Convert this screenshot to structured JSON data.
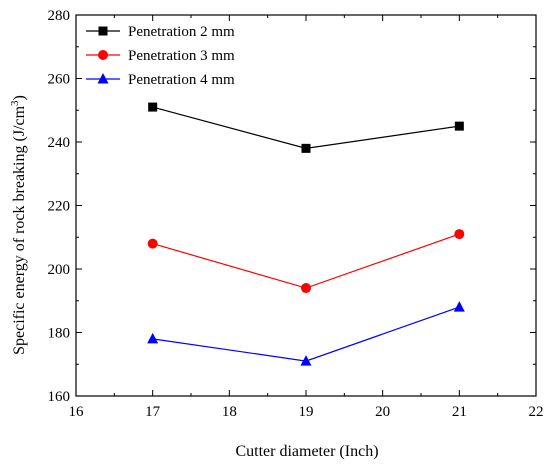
{
  "chart_data": {
    "type": "line",
    "title": "",
    "xlabel": "Cutter diameter (Inch)",
    "ylabel": "Specific energy of rock breaking (J/cm",
    "ylabel_sup": "3",
    "ylabel_close": ")",
    "xlim": [
      16,
      22
    ],
    "ylim": [
      160,
      280
    ],
    "xticks": [
      "16",
      "17",
      "18",
      "19",
      "20",
      "21",
      "22"
    ],
    "yticks": [
      "160",
      "180",
      "200",
      "220",
      "240",
      "260",
      "280"
    ],
    "x": [
      17,
      19,
      21
    ],
    "legend_position": "top-left",
    "grid": false,
    "series": [
      {
        "name": "Penetration 2 mm",
        "values": [
          251,
          238,
          245
        ],
        "color": "#000000",
        "marker": "square"
      },
      {
        "name": "Penetration 3 mm",
        "values": [
          208,
          194,
          211
        ],
        "color": "#ff0000",
        "marker": "circle"
      },
      {
        "name": "Penetration 4 mm",
        "values": [
          178,
          171,
          188
        ],
        "color": "#0000ff",
        "marker": "triangle"
      }
    ]
  }
}
